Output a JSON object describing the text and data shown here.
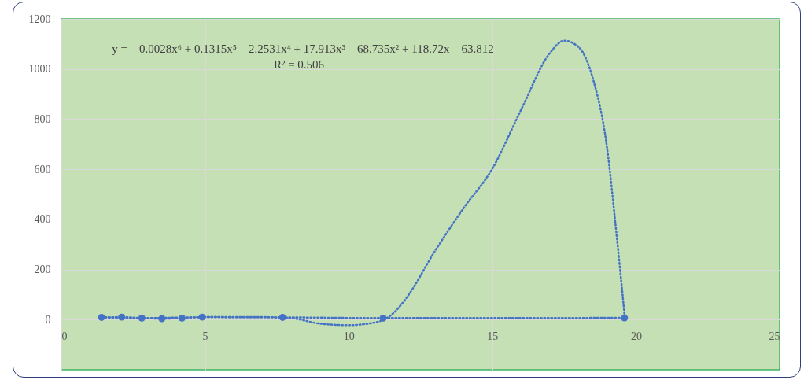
{
  "chart_data": {
    "type": "line",
    "annotations": [
      "y = – 0.0028x⁶ + 0.1315x⁵ – 2.2531x⁴ + 17.913x³ – 68.735x² + 118.72x – 63.812",
      "R² = 0.506"
    ],
    "series": [
      {
        "color": "#4472c4",
        "x": [
          1.4,
          2.1,
          2.8,
          3.5,
          4.2,
          4.9,
          7.7,
          11.2,
          19.6
        ],
        "values": [
          9,
          10,
          6,
          4,
          6,
          10,
          9,
          6,
          7
        ]
      },
      {
        "type": "line",
        "marker": "none",
        "color": "#4472c4",
        "x": [
          1.4,
          3,
          5,
          7,
          8,
          9,
          10,
          11,
          11.5,
          12,
          13,
          14,
          15,
          16,
          17,
          17.5,
          18,
          18.5,
          19,
          19.3,
          19.6
        ],
        "values": [
          9,
          6,
          10,
          10,
          6,
          -16,
          -22,
          -9,
          20,
          85,
          273,
          445,
          602,
          837,
          1063,
          1113,
          1088,
          962,
          680,
          367,
          22
        ]
      }
    ],
    "xlim": [
      0,
      25
    ],
    "xticks": [
      0,
      5,
      10,
      15,
      20,
      25
    ],
    "ylim": [
      -200,
      1200
    ],
    "yticks": [
      0,
      200,
      400,
      600,
      800,
      1000,
      1200
    ],
    "grid": true,
    "marker": "circle",
    "line_style": "dotted"
  }
}
